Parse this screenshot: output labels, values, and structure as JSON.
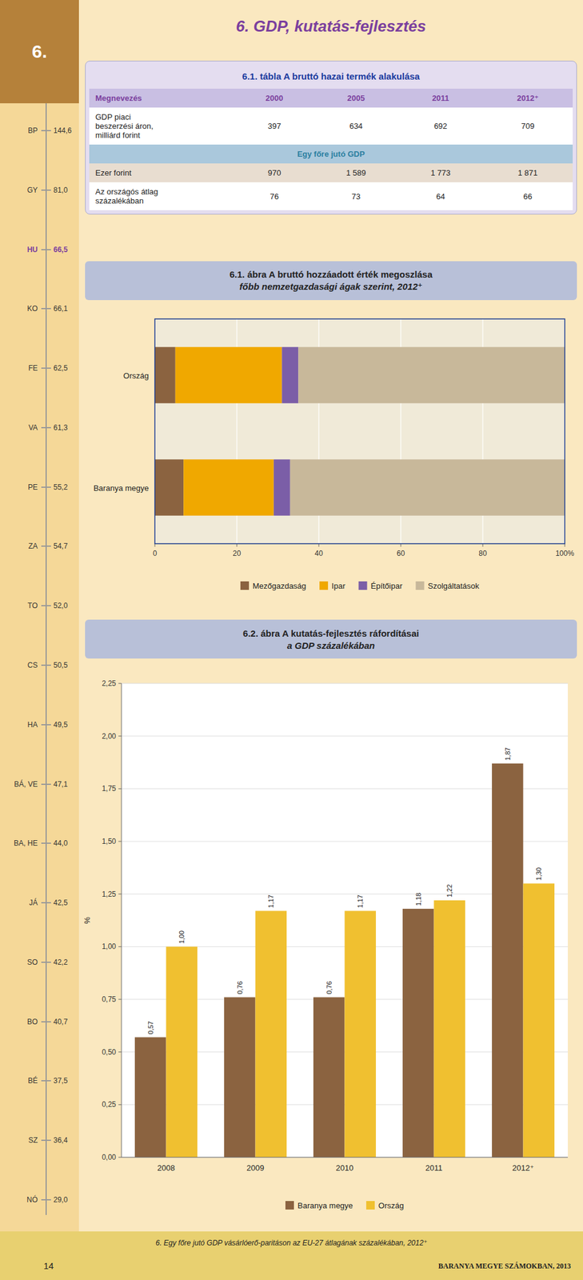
{
  "page": {
    "chapter": "6.",
    "title": "6. GDP, kutatás-fejlesztés",
    "sidebar": {
      "items": [
        {
          "label": "BP",
          "value": "144,6"
        },
        {
          "label": "GY",
          "value": "81,0"
        },
        {
          "label": "HU",
          "value": "66,5",
          "color": "#7b3f9e"
        },
        {
          "label": "KO",
          "value": "66,1"
        },
        {
          "label": "FE",
          "value": "62,5"
        },
        {
          "label": "VA",
          "value": "61,3"
        },
        {
          "label": "PE",
          "value": "55,2"
        },
        {
          "label": "ZA",
          "value": "54,7"
        },
        {
          "label": "TO",
          "value": "52,0"
        },
        {
          "label": "CS",
          "value": "50,5"
        },
        {
          "label": "HA",
          "value": "49,5"
        },
        {
          "label": "BÁ, VE",
          "value": "47,1"
        },
        {
          "label": "BA, HE",
          "value": "44,0"
        },
        {
          "label": "JÁ",
          "value": "42,5"
        },
        {
          "label": "SO",
          "value": "42,2"
        },
        {
          "label": "BO",
          "value": "40,7"
        },
        {
          "label": "BÉ",
          "value": "37,5"
        },
        {
          "label": "SZ",
          "value": "36,4"
        },
        {
          "label": "NÓ",
          "value": "29,0"
        }
      ]
    },
    "table": {
      "title": "6.1. tábla A bruttó hazai termék alakulása",
      "columns": [
        "Megnevezés",
        "2000",
        "2005",
        "2011",
        "2012⁺"
      ],
      "rows": [
        {
          "label": "GDP piaci\nbeszerzési áron,\nmilliárd forint",
          "cells": [
            "397",
            "634",
            "692",
            "709"
          ]
        },
        {
          "section": "Egy főre jutó GDP"
        },
        {
          "label": "Ezer forint",
          "cells": [
            "970",
            "1 589",
            "1 773",
            "1 871"
          ]
        },
        {
          "label": "Az országós átlag\nszázalékában",
          "cells": [
            "76",
            "73",
            "64",
            "66"
          ]
        }
      ]
    },
    "footer": {
      "note": "6. Egy főre jutó GDP vásárlóerő-paritáson az EU-27 átlagának százalékában, 2012⁺",
      "page": "14",
      "publication": "BARANYA MEGYE SZÁMOKBAN, 2013"
    }
  },
  "chart_data": [
    {
      "type": "bar",
      "title": "6.1. ábra A bruttó hozzáadott érték megoszlása",
      "subtitle": "főbb nemzetgazdasági ágak szerint, 2012⁺",
      "orientation": "horizontal",
      "stacked": true,
      "categories": [
        "Baranya megye",
        "Ország"
      ],
      "series": [
        {
          "name": "Mezőgazdaság",
          "color": "#8B6340",
          "values": [
            7,
            5
          ]
        },
        {
          "name": "Ipar",
          "color": "#f0a800",
          "values": [
            22,
            26
          ]
        },
        {
          "name": "Építőipar",
          "color": "#7b5ea7",
          "values": [
            4,
            4
          ]
        },
        {
          "name": "Szolgáltatások",
          "color": "#c8b89a",
          "values": [
            67,
            65
          ]
        }
      ],
      "xlim": [
        0,
        100
      ],
      "xticks": [
        0,
        20,
        40,
        60,
        80,
        {
          "value": 100,
          "label": "100%"
        }
      ],
      "grid": true,
      "legend": "bottom"
    },
    {
      "type": "bar",
      "title": "6.2. ábra A kutatás-fejlesztés ráfordításai",
      "subtitle": "a GDP százalékában",
      "categories": [
        "2008",
        "2009",
        "2010",
        "2011",
        "2012⁺"
      ],
      "series": [
        {
          "name": "Baranya megye",
          "color": "#8B6340",
          "values": [
            0.57,
            0.76,
            0.76,
            1.18,
            1.87
          ],
          "value_labels": [
            "0,57",
            "0,76",
            "0,76",
            "1,18",
            "1,87"
          ]
        },
        {
          "name": "Ország",
          "color": "#f0c030",
          "values": [
            1.0,
            1.17,
            1.17,
            1.22,
            1.3
          ],
          "value_labels": [
            "1,00",
            "1,17",
            "1,17",
            "1,22",
            "1,30"
          ]
        }
      ],
      "y_label": "%",
      "ylim": [
        0,
        2.25
      ],
      "yticks": [
        {
          "value": 0,
          "label": "0,00"
        },
        {
          "value": 0.25,
          "label": "0,25"
        },
        {
          "value": 0.5,
          "label": "0,50"
        },
        {
          "value": 0.75,
          "label": "0,75"
        },
        {
          "value": 1,
          "label": "1,00"
        },
        {
          "value": 1.25,
          "label": "1,25"
        },
        {
          "value": 1.5,
          "label": "1,50"
        },
        {
          "value": 1.75,
          "label": "1,75"
        },
        {
          "value": 2,
          "label": "2,00"
        },
        {
          "value": 2.25,
          "label": "2,25"
        }
      ],
      "grid": true,
      "data_labels": true,
      "legend": "bottom"
    }
  ]
}
